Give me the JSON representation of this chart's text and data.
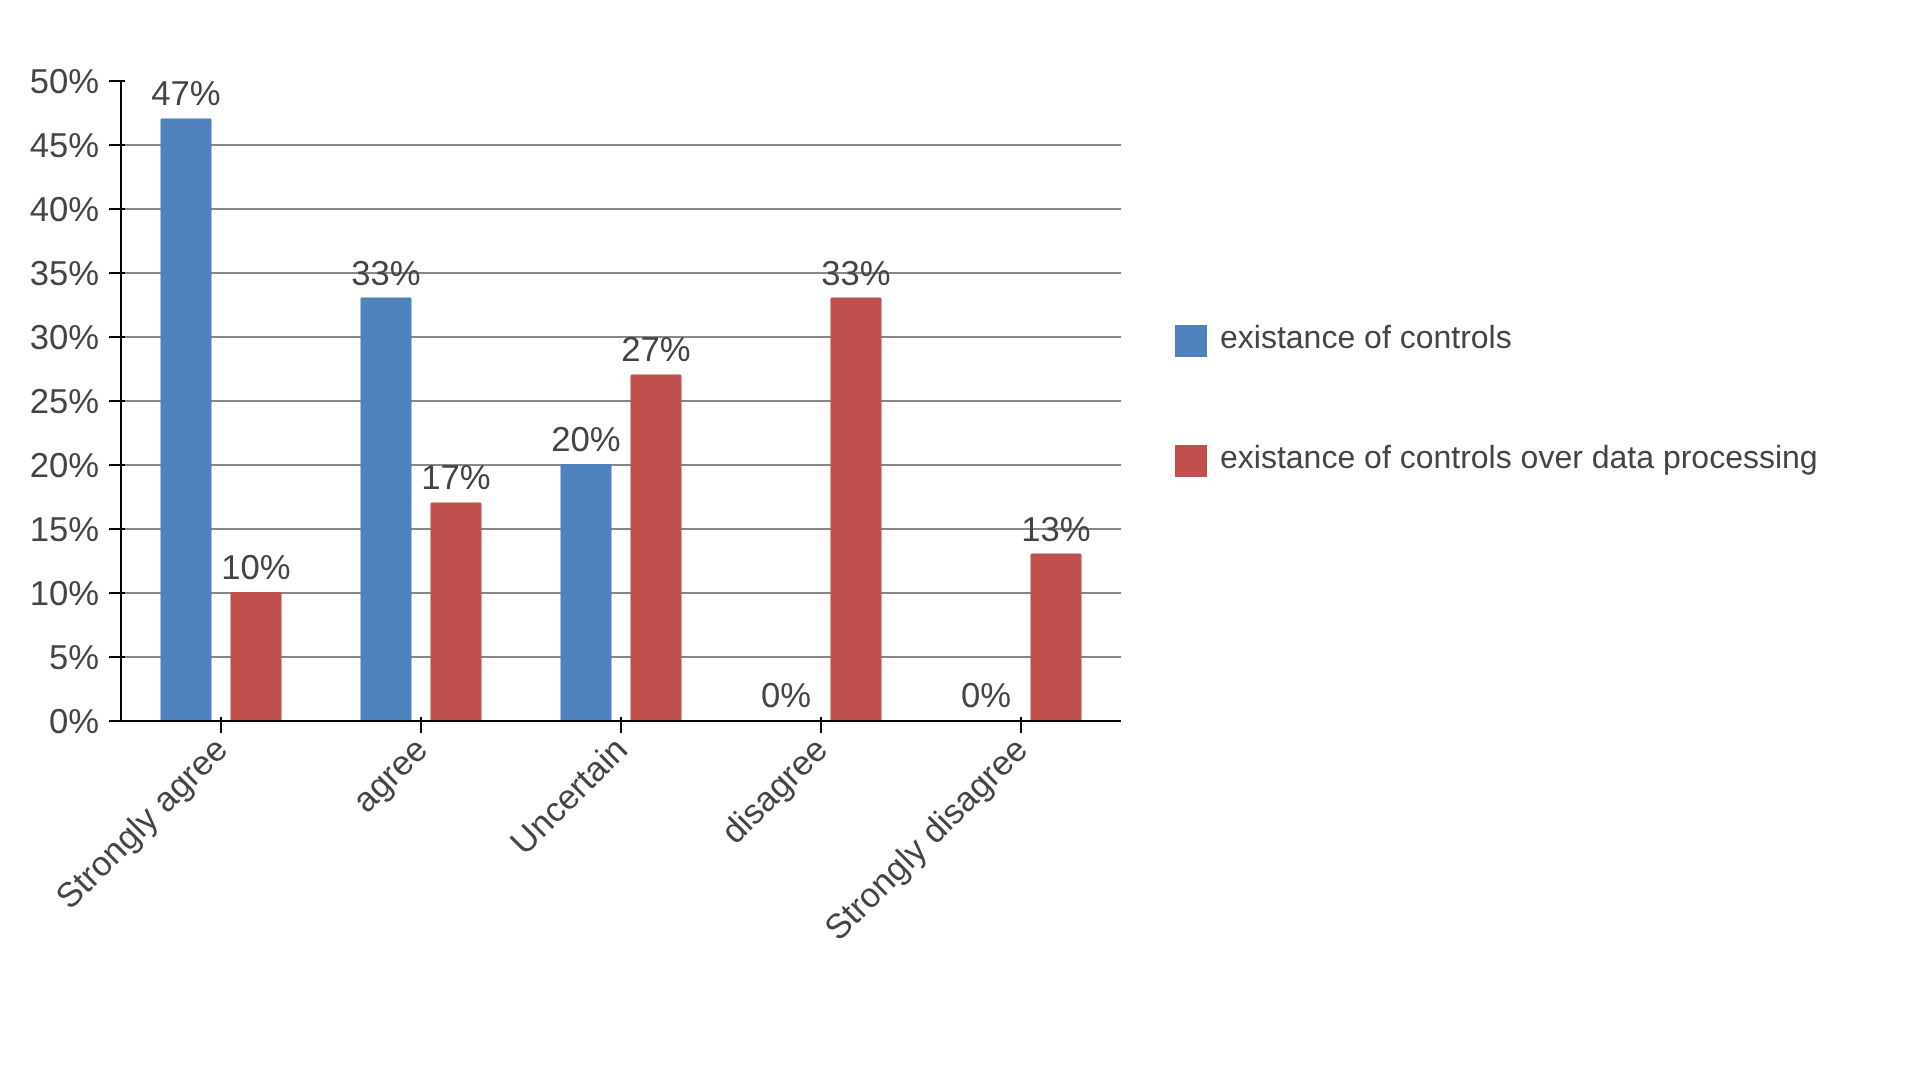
{
  "chart_data": {
    "type": "bar",
    "categories": [
      "Strongly agree",
      "agree",
      "Uncertain",
      "disagree",
      "Strongly disagree"
    ],
    "series": [
      {
        "name": "existance of controls",
        "color": "#4f81bd",
        "values": [
          47,
          33,
          20,
          0,
          0
        ],
        "value_labels": [
          "47%",
          "33%",
          "20%",
          "0%",
          "0%"
        ]
      },
      {
        "name": "existance of controls over data processing",
        "color": "#c0504d",
        "values": [
          10,
          17,
          27,
          33,
          13
        ],
        "value_labels": [
          "10%",
          "17%",
          "27%",
          "33%",
          "13%"
        ]
      }
    ],
    "ylim": [
      0,
      50
    ],
    "yticks": [
      {
        "value": 0,
        "label": "0%"
      },
      {
        "value": 5,
        "label": "5%"
      },
      {
        "value": 10,
        "label": "10%"
      },
      {
        "value": 15,
        "label": "15%"
      },
      {
        "value": 20,
        "label": "20%"
      },
      {
        "value": 25,
        "label": "25%"
      },
      {
        "value": 30,
        "label": "30%"
      },
      {
        "value": 35,
        "label": "35%"
      },
      {
        "value": 40,
        "label": "40%"
      },
      {
        "value": 45,
        "label": "45%"
      },
      {
        "value": 50,
        "label": "50%"
      }
    ],
    "grid": "y",
    "legend": "right"
  }
}
